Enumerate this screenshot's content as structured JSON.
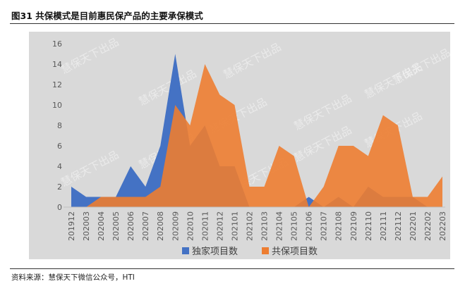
{
  "header": {
    "title": "图31 共保模式是目前惠民保产品的主要承保模式"
  },
  "footer": {
    "source": "资料来源：慧保天下微信公众号，HTI"
  },
  "watermark": "慧保天下出品",
  "chart_data": {
    "type": "area",
    "categories": [
      "201912",
      "202003",
      "202004",
      "202005",
      "202006",
      "202007",
      "202008",
      "202009",
      "202010",
      "202011",
      "202012",
      "202101",
      "202102",
      "202103",
      "202104",
      "202105",
      "202106",
      "202107",
      "202108",
      "202109",
      "202110",
      "202111",
      "202112",
      "202201",
      "202202",
      "202203"
    ],
    "ylim": [
      0,
      16
    ],
    "yticks": [
      "0",
      "2",
      "4",
      "6",
      "8",
      "10",
      "12",
      "14",
      "16"
    ],
    "series": [
      {
        "name": "独家项目数",
        "color": "#4472C4",
        "values": [
          2,
          1,
          1,
          1,
          4,
          2,
          6,
          15,
          6,
          8,
          4,
          4,
          0,
          0,
          0,
          0,
          1,
          0,
          1,
          0,
          2,
          1,
          1,
          1,
          0,
          0
        ]
      },
      {
        "name": "共保项目数",
        "color": "#ED7D31",
        "values": [
          0,
          0,
          1,
          1,
          1,
          1,
          2,
          10,
          8,
          14,
          11,
          10,
          2,
          2,
          6,
          5,
          0,
          2,
          6,
          6,
          5,
          9,
          8,
          1,
          1,
          3
        ]
      }
    ],
    "legend_position": "bottom",
    "background": "#D9D9D9",
    "grid": false
  }
}
